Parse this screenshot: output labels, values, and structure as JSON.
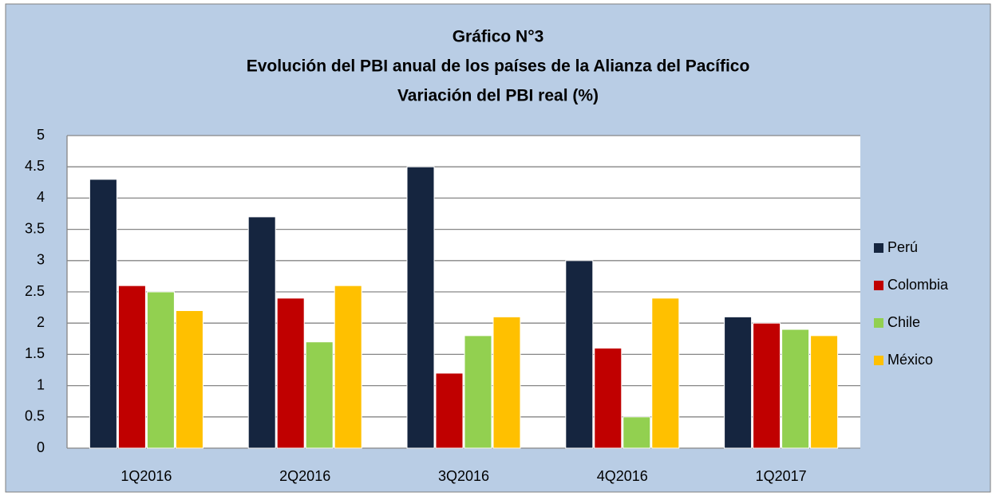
{
  "chart_data": {
    "type": "bar",
    "title": [
      "Gráfico N°3",
      "Evolución del PBI anual de los países de la Alianza del Pacífico",
      "Variación del PBI real (%)"
    ],
    "categories": [
      "1Q2016",
      "2Q2016",
      "3Q2016",
      "4Q2016",
      "1Q2017"
    ],
    "series": [
      {
        "name": "Perú",
        "color": "#15253f",
        "values": [
          4.3,
          3.7,
          4.5,
          3.0,
          2.1
        ]
      },
      {
        "name": "Colombia",
        "color": "#c00000",
        "values": [
          2.6,
          2.4,
          1.2,
          1.6,
          2.0
        ]
      },
      {
        "name": "Chile",
        "color": "#92d050",
        "values": [
          2.5,
          1.7,
          1.8,
          0.5,
          1.9
        ]
      },
      {
        "name": "México",
        "color": "#ffc000",
        "values": [
          2.2,
          2.6,
          2.1,
          2.4,
          1.8
        ]
      }
    ],
    "ylim": [
      0,
      5
    ],
    "yticks": [
      0,
      0.5,
      1,
      1.5,
      2,
      2.5,
      3,
      3.5,
      4,
      4.5,
      5
    ],
    "grid": true,
    "legend": "right"
  }
}
